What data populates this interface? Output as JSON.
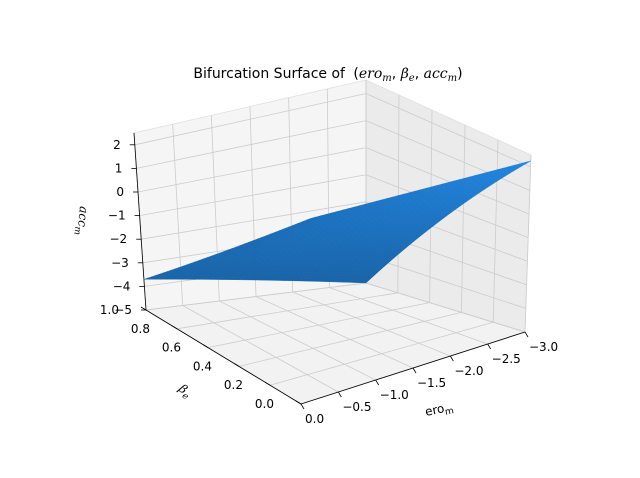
{
  "chart_data": {
    "type": "surface3d",
    "title": "Bifurcation Surface of",
    "title_math": {
      "open": "(",
      "sep": ", ",
      "close": ")",
      "terms": [
        {
          "base": "ero",
          "sub": "m"
        },
        {
          "base": "β",
          "sub": "e"
        },
        {
          "base": "acc",
          "sub": "m"
        }
      ]
    },
    "xlabel": {
      "base": "ero",
      "sub": "m"
    },
    "ylabel": {
      "base": "β",
      "sub": "e"
    },
    "zlabel": {
      "base": "acc",
      "sub": "m"
    },
    "x_ticks": [
      "0.0",
      "−0.5",
      "−1.0",
      "−1.5",
      "−2.0",
      "−2.5",
      "−3.0"
    ],
    "y_ticks": [
      "0.0",
      "0.2",
      "0.4",
      "0.6",
      "0.8",
      "1.0"
    ],
    "z_ticks": [
      "2",
      "1",
      "0",
      "−1",
      "−2",
      "−3",
      "−4",
      "−5"
    ],
    "xlim": [
      0,
      -3
    ],
    "ylim": [
      0,
      1
    ],
    "zlim": [
      -5,
      2.5
    ],
    "grid": true,
    "surface_color": "#1f77b4",
    "surface_corners": [
      {
        "x": 0,
        "y": 0,
        "z": 2.25
      },
      {
        "x": -3,
        "y": 0,
        "z": 2.25
      },
      {
        "x": -3,
        "y": 1,
        "z": -5
      },
      {
        "x": 0,
        "y": 1,
        "z": -3.7
      }
    ]
  }
}
